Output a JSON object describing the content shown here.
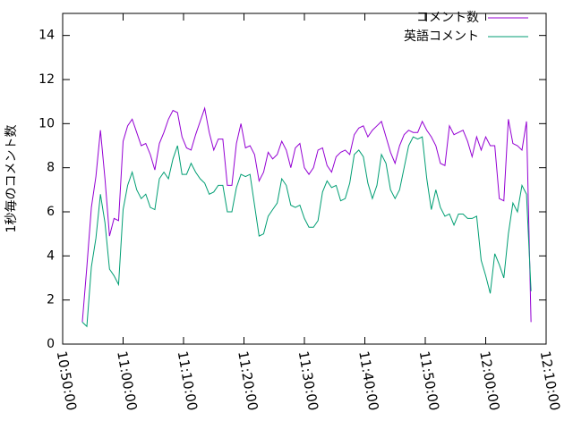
{
  "chart_data": {
    "type": "line",
    "y_label": "1秒毎のコメント数",
    "x": [
      "10:53:15",
      "10:54:00",
      "10:54:45",
      "10:55:30",
      "10:56:15",
      "10:57:00",
      "10:57:45",
      "10:58:30",
      "10:59:15",
      "11:00:00",
      "11:00:45",
      "11:01:30",
      "11:02:15",
      "11:03:00",
      "11:03:45",
      "11:04:30",
      "11:05:15",
      "11:06:00",
      "11:06:45",
      "11:07:30",
      "11:08:15",
      "11:09:00",
      "11:09:45",
      "11:10:30",
      "11:11:15",
      "11:12:00",
      "11:12:45",
      "11:13:30",
      "11:14:15",
      "11:15:00",
      "11:15:45",
      "11:16:30",
      "11:17:15",
      "11:18:00",
      "11:18:45",
      "11:19:30",
      "11:20:15",
      "11:21:00",
      "11:21:45",
      "11:22:30",
      "11:23:15",
      "11:24:00",
      "11:24:45",
      "11:25:30",
      "11:26:15",
      "11:27:00",
      "11:27:45",
      "11:28:30",
      "11:29:15",
      "11:30:00",
      "11:30:45",
      "11:31:30",
      "11:32:15",
      "11:33:00",
      "11:33:45",
      "11:34:30",
      "11:35:15",
      "11:36:00",
      "11:36:45",
      "11:37:30",
      "11:38:15",
      "11:39:00",
      "11:39:45",
      "11:40:30",
      "11:41:15",
      "11:42:00",
      "11:42:45",
      "11:43:30",
      "11:44:15",
      "11:45:00",
      "11:45:45",
      "11:46:30",
      "11:47:15",
      "11:48:00",
      "11:48:45",
      "11:49:30",
      "11:50:15",
      "11:51:00",
      "11:51:45",
      "11:52:30",
      "11:53:15",
      "11:54:00",
      "11:54:45",
      "11:55:30",
      "11:56:15",
      "11:57:00",
      "11:57:45",
      "11:58:30",
      "11:59:15",
      "12:00:00",
      "12:00:45",
      "12:01:30",
      "12:02:15",
      "12:03:00",
      "12:03:45",
      "12:04:30",
      "12:05:15",
      "12:06:00",
      "12:06:45",
      "12:07:30"
    ],
    "series": [
      {
        "name": "コメント数",
        "color": "#9400d3",
        "values": [
          1.0,
          3.5,
          6.2,
          7.6,
          9.7,
          7.5,
          4.9,
          5.7,
          5.6,
          9.2,
          9.9,
          10.2,
          9.6,
          9.0,
          9.1,
          8.6,
          7.9,
          9.1,
          9.6,
          10.2,
          10.6,
          10.5,
          9.4,
          8.9,
          8.8,
          9.5,
          10.1,
          10.7,
          9.6,
          8.8,
          9.3,
          9.3,
          7.2,
          7.2,
          9.1,
          10.0,
          8.9,
          9.0,
          8.6,
          7.4,
          7.8,
          8.7,
          8.4,
          8.6,
          9.2,
          8.8,
          8.0,
          8.9,
          9.1,
          8.0,
          7.7,
          8.0,
          8.8,
          8.9,
          8.1,
          7.8,
          8.5,
          8.7,
          8.8,
          8.6,
          9.5,
          9.8,
          9.9,
          9.4,
          9.7,
          9.9,
          10.1,
          9.4,
          8.7,
          8.2,
          9.0,
          9.5,
          9.7,
          9.6,
          9.6,
          10.1,
          9.7,
          9.4,
          9.0,
          8.2,
          8.1,
          9.9,
          9.5,
          9.6,
          9.7,
          9.2,
          8.5,
          9.4,
          8.8,
          9.4,
          9.0,
          9.0,
          6.6,
          6.5,
          10.2,
          9.1,
          9.0,
          8.8,
          10.1,
          1.0
        ]
      },
      {
        "name": "英語コメント",
        "color": "#009e73",
        "values": [
          1.0,
          0.8,
          3.5,
          4.8,
          6.8,
          5.5,
          3.4,
          3.1,
          2.7,
          6.1,
          7.2,
          7.8,
          7.0,
          6.6,
          6.8,
          6.2,
          6.1,
          7.5,
          7.8,
          7.5,
          8.4,
          9.0,
          7.7,
          7.7,
          8.2,
          7.8,
          7.5,
          7.3,
          6.8,
          6.9,
          7.2,
          7.2,
          6.0,
          6.0,
          7.1,
          7.7,
          7.6,
          7.7,
          6.3,
          4.9,
          5.0,
          5.8,
          6.1,
          6.4,
          7.5,
          7.2,
          6.3,
          6.2,
          6.3,
          5.7,
          5.3,
          5.3,
          5.6,
          6.9,
          7.4,
          7.1,
          7.2,
          6.5,
          6.6,
          7.3,
          8.6,
          8.8,
          8.5,
          7.3,
          6.6,
          7.2,
          8.6,
          8.2,
          7.0,
          6.6,
          7.0,
          8.0,
          9.0,
          9.4,
          9.3,
          9.4,
          7.5,
          6.1,
          7.0,
          6.2,
          5.8,
          5.9,
          5.4,
          5.9,
          5.9,
          5.7,
          5.7,
          5.8,
          3.8,
          3.1,
          2.3,
          4.1,
          3.6,
          3.0,
          5.0,
          6.4,
          6.0,
          7.2,
          6.8,
          2.4
        ]
      }
    ],
    "xlim": [
      "10:50:00",
      "12:10:00"
    ],
    "xticks": [
      "10:50:00",
      "11:00:00",
      "11:10:00",
      "11:20:00",
      "11:30:00",
      "11:40:00",
      "11:50:00",
      "12:00:00",
      "12:10:00"
    ],
    "ylim": [
      0,
      15
    ],
    "yticks": [
      0,
      2,
      4,
      6,
      8,
      10,
      12,
      14
    ],
    "legend": "top-right"
  }
}
